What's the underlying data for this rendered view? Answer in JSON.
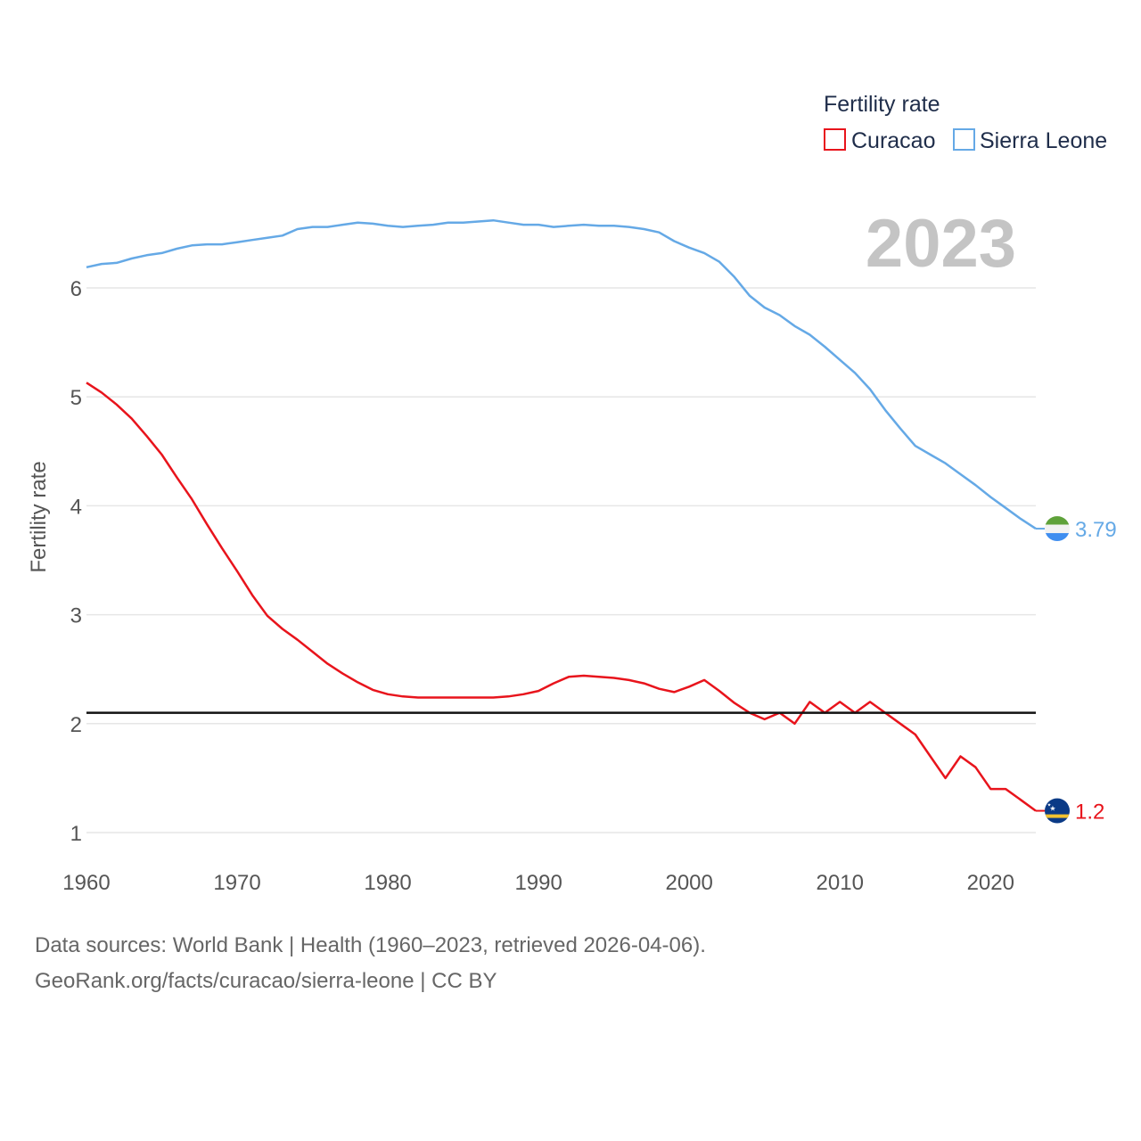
{
  "chart_data": {
    "type": "line",
    "legend_title": "Fertility rate",
    "legend_position": "top-right",
    "ylabel": "Fertility rate",
    "xlabel": "",
    "xlim": [
      1960,
      2023
    ],
    "ylim": [
      0.9,
      6.9
    ],
    "yticks": [
      "1",
      "2",
      "3",
      "4",
      "5",
      "6"
    ],
    "xticks": [
      "1960",
      "1970",
      "1980",
      "1990",
      "2000",
      "2010",
      "2020"
    ],
    "year_label": "2023",
    "reference_line": 2.1,
    "x": [
      1960,
      1961,
      1962,
      1963,
      1964,
      1965,
      1966,
      1967,
      1968,
      1969,
      1970,
      1971,
      1972,
      1973,
      1974,
      1975,
      1976,
      1977,
      1978,
      1979,
      1980,
      1981,
      1982,
      1983,
      1984,
      1985,
      1986,
      1987,
      1988,
      1989,
      1990,
      1991,
      1992,
      1993,
      1994,
      1995,
      1996,
      1997,
      1998,
      1999,
      2000,
      2001,
      2002,
      2003,
      2004,
      2005,
      2006,
      2007,
      2008,
      2009,
      2010,
      2011,
      2012,
      2013,
      2014,
      2015,
      2016,
      2017,
      2018,
      2019,
      2020,
      2021,
      2022,
      2023
    ],
    "series": [
      {
        "name": "Curacao",
        "color": "#e8141c",
        "end_label": "1.2",
        "values": [
          5.13,
          5.04,
          4.93,
          4.8,
          4.64,
          4.47,
          4.26,
          4.06,
          3.83,
          3.61,
          3.4,
          3.18,
          2.99,
          2.87,
          2.77,
          2.66,
          2.55,
          2.46,
          2.38,
          2.31,
          2.27,
          2.25,
          2.24,
          2.24,
          2.24,
          2.24,
          2.24,
          2.24,
          2.25,
          2.27,
          2.3,
          2.37,
          2.43,
          2.44,
          2.43,
          2.42,
          2.4,
          2.37,
          2.32,
          2.29,
          2.34,
          2.4,
          2.3,
          2.19,
          2.1,
          2.04,
          2.1,
          2.0,
          2.2,
          2.1,
          2.2,
          2.1,
          2.2,
          2.1,
          2.0,
          1.9,
          1.7,
          1.5,
          1.7,
          1.6,
          1.4,
          1.4,
          1.3,
          1.2
        ]
      },
      {
        "name": "Sierra Leone",
        "color": "#65a9e6",
        "end_label": "3.79",
        "values": [
          6.19,
          6.22,
          6.23,
          6.27,
          6.3,
          6.32,
          6.36,
          6.39,
          6.4,
          6.4,
          6.42,
          6.44,
          6.46,
          6.48,
          6.54,
          6.56,
          6.56,
          6.58,
          6.6,
          6.59,
          6.57,
          6.56,
          6.57,
          6.58,
          6.6,
          6.6,
          6.61,
          6.62,
          6.6,
          6.58,
          6.58,
          6.56,
          6.57,
          6.58,
          6.57,
          6.57,
          6.56,
          6.54,
          6.51,
          6.43,
          6.37,
          6.32,
          6.24,
          6.1,
          5.93,
          5.82,
          5.75,
          5.65,
          5.57,
          5.46,
          5.34,
          5.22,
          5.07,
          4.88,
          4.71,
          4.55,
          4.47,
          4.39,
          4.29,
          4.19,
          4.08,
          3.98,
          3.88,
          3.79
        ]
      }
    ]
  },
  "source": {
    "line1": "Data sources: World Bank | Health (1960–2023, retrieved 2026-04-06).",
    "line2": "GeoRank.org/facts/curacao/sierra-leone | CC BY"
  }
}
